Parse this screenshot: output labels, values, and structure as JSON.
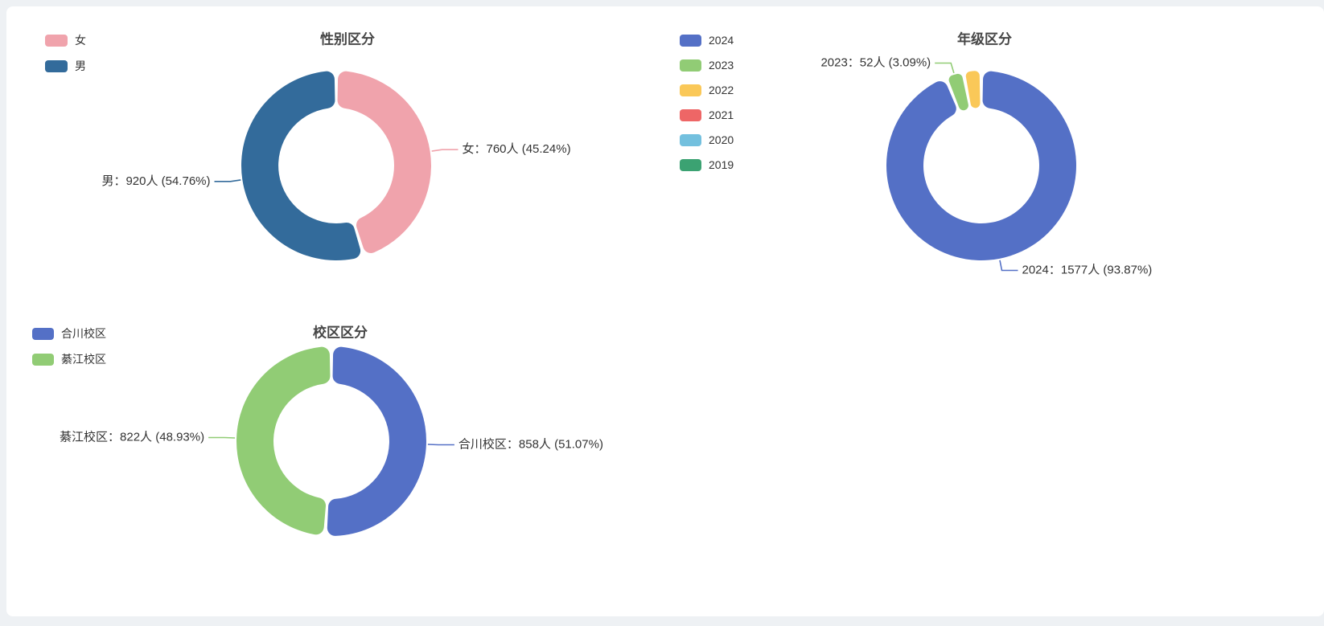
{
  "page": {
    "background_color": "#eef1f4",
    "card_background_color": "#ffffff"
  },
  "chart_data": [
    {
      "id": "gender",
      "type": "pie",
      "title": "性别区分",
      "legend_position": "top-left",
      "legend": [
        {
          "label": "女",
          "color": "#F0A3AC"
        },
        {
          "label": "男",
          "color": "#336B9B"
        }
      ],
      "slices": [
        {
          "name": "女",
          "value": 760,
          "percent": 45.24,
          "color": "#F0A3AC",
          "label": "女：760人 (45.24%)",
          "label_visible": true
        },
        {
          "name": "男",
          "value": 920,
          "percent": 54.76,
          "color": "#336B9B",
          "label": "男：920人 (54.76%)",
          "label_visible": true
        }
      ]
    },
    {
      "id": "grade",
      "type": "pie",
      "title": "年级区分",
      "legend_position": "top-left",
      "legend": [
        {
          "label": "2024",
          "color": "#5470C6"
        },
        {
          "label": "2023",
          "color": "#91CC75"
        },
        {
          "label": "2022",
          "color": "#FAC858"
        },
        {
          "label": "2021",
          "color": "#EE6666"
        },
        {
          "label": "2020",
          "color": "#73C0DE"
        },
        {
          "label": "2019",
          "color": "#3BA272"
        }
      ],
      "slices": [
        {
          "name": "2024",
          "value": 1577,
          "percent": 93.87,
          "color": "#5470C6",
          "label": "2024：1577人 (93.87%)",
          "label_visible": true
        },
        {
          "name": "2023",
          "value": 52,
          "percent": 3.09,
          "color": "#91CC75",
          "label": "2023：52人 (3.09%)",
          "label_visible": true
        },
        {
          "name": "2022",
          "value": 51,
          "percent": 3.04,
          "color": "#FAC858",
          "label": "",
          "label_visible": false,
          "estimated": true
        }
      ]
    },
    {
      "id": "campus",
      "type": "pie",
      "title": "校区区分",
      "legend_position": "top-left",
      "legend": [
        {
          "label": "合川校区",
          "color": "#5470C6"
        },
        {
          "label": "綦江校区",
          "color": "#91CC75"
        }
      ],
      "slices": [
        {
          "name": "合川校区",
          "value": 858,
          "percent": 51.07,
          "color": "#5470C6",
          "label": "合川校区：858人 (51.07%)",
          "label_visible": true
        },
        {
          "name": "綦江校区",
          "value": 822,
          "percent": 48.93,
          "color": "#91CC75",
          "label": "綦江校区：822人 (48.93%)",
          "label_visible": true
        }
      ]
    }
  ]
}
